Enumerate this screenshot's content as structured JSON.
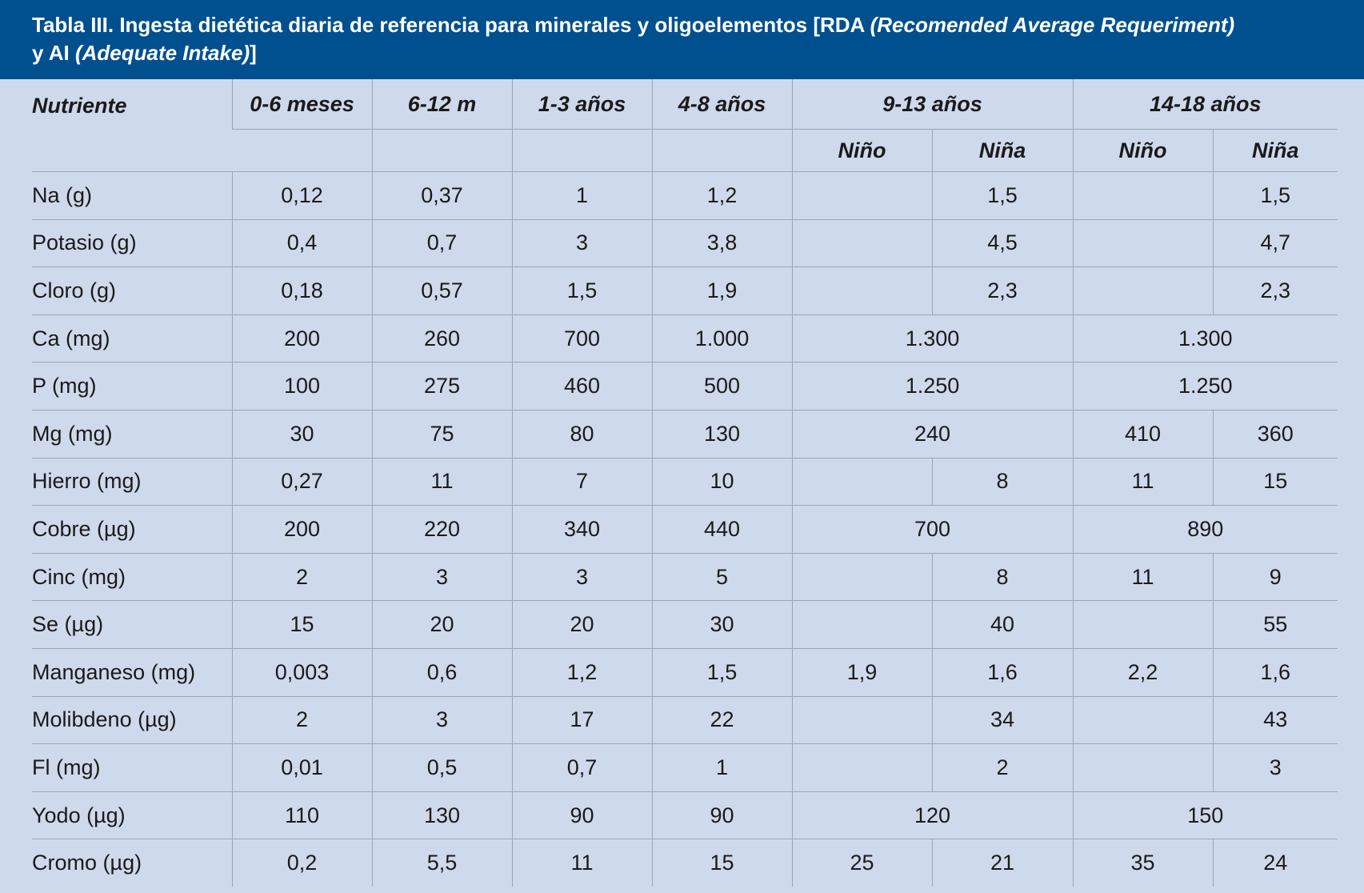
{
  "title": {
    "prefix": "Tabla III.  Ingesta dietética diaria de referencia para minerales y oligoelementos [RDA ",
    "rda_italic": "(Recomended Average Requeriment)",
    "line2_prefix": "y AI ",
    "ai_italic": "(Adequate Intake)",
    "suffix": "]"
  },
  "header": {
    "nutriente": "Nutriente",
    "c1": "0-6 meses",
    "c2": "6-12 m",
    "c3": "1-3 años",
    "c4": "4-8 años",
    "g1": "9-13 años",
    "g2": "14-18 años",
    "nino": "Niño",
    "nina": "Niña"
  },
  "rows": [
    {
      "name": "Na (g)",
      "c1": "0,12",
      "c2": "0,37",
      "c3": "1",
      "c4": "1,2",
      "a": "",
      "b": "1,5",
      "c": "",
      "d": "1,5"
    },
    {
      "name": "Potasio (g)",
      "c1": "0,4",
      "c2": "0,7",
      "c3": "3",
      "c4": "3,8",
      "a": "",
      "b": "4,5",
      "c": "",
      "d": "4,7"
    },
    {
      "name": "Cloro (g)",
      "c1": "0,18",
      "c2": "0,57",
      "c3": "1,5",
      "c4": "1,9",
      "a": "",
      "b": "2,3",
      "c": "",
      "d": "2,3"
    },
    {
      "name": "Ca (mg)",
      "c1": "200",
      "c2": "260",
      "c3": "700",
      "c4": "1.000",
      "g1": "1.300",
      "g2": "1.300"
    },
    {
      "name": "P (mg)",
      "c1": "100",
      "c2": "275",
      "c3": "460",
      "c4": "500",
      "g1": "1.250",
      "g2": "1.250"
    },
    {
      "name": "Mg (mg)",
      "c1": "30",
      "c2": "75",
      "c3": "80",
      "c4": "130",
      "g1": "240",
      "c": "410",
      "d": "360"
    },
    {
      "name": "Hierro (mg)",
      "c1": "0,27",
      "c2": "11",
      "c3": "7",
      "c4": "10",
      "a": "",
      "b": "8",
      "c": "11",
      "d": "15"
    },
    {
      "name": "Cobre (µg)",
      "c1": "200",
      "c2": "220",
      "c3": "340",
      "c4": "440",
      "g1": "700",
      "g2": "890"
    },
    {
      "name": "Cinc (mg)",
      "c1": "2",
      "c2": "3",
      "c3": "3",
      "c4": "5",
      "a": "",
      "b": "8",
      "c": "11",
      "d": "9"
    },
    {
      "name": "Se (µg)",
      "c1": "15",
      "c2": "20",
      "c3": "20",
      "c4": "30",
      "a": "",
      "b": "40",
      "c": "",
      "d": "55"
    },
    {
      "name": "Manganeso (mg)",
      "c1": "0,003",
      "c2": "0,6",
      "c3": "1,2",
      "c4": "1,5",
      "a": "1,9",
      "b": "1,6",
      "c": "2,2",
      "d": "1,6"
    },
    {
      "name": "Molibdeno (µg)",
      "c1": "2",
      "c2": "3",
      "c3": "17",
      "c4": "22",
      "a": "",
      "b": "34",
      "c": "",
      "d": "43"
    },
    {
      "name": "Fl (mg)",
      "c1": "0,01",
      "c2": "0,5",
      "c3": "0,7",
      "c4": "1",
      "a": "",
      "b": "2",
      "c": "",
      "d": "3"
    },
    {
      "name": "Yodo (µg)",
      "c1": "110",
      "c2": "130",
      "c3": "90",
      "c4": "90",
      "g1": "120",
      "g2": "150"
    },
    {
      "name": "Cromo (µg)",
      "c1": "0,2",
      "c2": "5,5",
      "c3": "11",
      "c4": "15",
      "a": "25",
      "b": "21",
      "c": "35",
      "d": "24"
    }
  ]
}
